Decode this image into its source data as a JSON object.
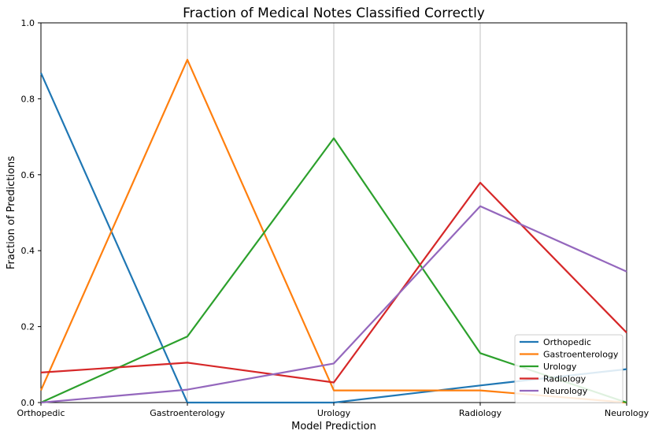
{
  "chart_data": {
    "type": "line",
    "title": "Fraction of Medical Notes Classified Correctly",
    "xlabel": "Model Prediction",
    "ylabel": "Fraction of Predictions",
    "categories": [
      "Orthopedic",
      "Gastroenterology",
      "Urology",
      "Radiology",
      "Neurology"
    ],
    "ylim": [
      0,
      1
    ],
    "yticks": [
      "0.0",
      "0.2",
      "0.4",
      "0.6",
      "0.8",
      "1.0"
    ],
    "grid": "vertical",
    "legend_position": "lower-right",
    "series": [
      {
        "name": "Orthopedic",
        "color": "#1f77b4",
        "values": [
          0.868,
          0.0,
          0.0,
          0.045,
          0.088
        ]
      },
      {
        "name": "Gastroenterology",
        "color": "#ff7f0e",
        "values": [
          0.032,
          0.903,
          0.032,
          0.032,
          0.0
        ]
      },
      {
        "name": "Urology",
        "color": "#2ca02c",
        "values": [
          0.0,
          0.174,
          0.696,
          0.13,
          0.0
        ]
      },
      {
        "name": "Radiology",
        "color": "#d62728",
        "values": [
          0.079,
          0.105,
          0.053,
          0.579,
          0.184
        ]
      },
      {
        "name": "Neurology",
        "color": "#9467bd",
        "values": [
          0.0,
          0.034,
          0.103,
          0.517,
          0.345
        ]
      }
    ]
  }
}
